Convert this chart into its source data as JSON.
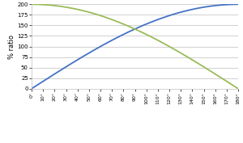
{
  "title": "",
  "ylabel": "% ratio",
  "xlabel": "",
  "x_ticks": [
    0,
    10,
    20,
    30,
    40,
    50,
    60,
    70,
    80,
    90,
    100,
    110,
    120,
    130,
    140,
    150,
    160,
    170,
    180
  ],
  "x_tick_labels": [
    "0°",
    "10°",
    "20°",
    "30°",
    "40°",
    "50°",
    "60°",
    "70°",
    "80°",
    "90°",
    "100°",
    "110°",
    "120°",
    "130°",
    "140°",
    "150°",
    "160°",
    "170°",
    "180°"
  ],
  "ylim": [
    0,
    200
  ],
  "xlim": [
    0,
    180
  ],
  "y_ticks": [
    0,
    25,
    50,
    75,
    100,
    125,
    150,
    175,
    200
  ],
  "deflection_color": "#4472C4",
  "included_color": "#9BBB59",
  "background_color": "#ffffff",
  "grid_color": "#BFBFBF",
  "line_width": 1.3
}
